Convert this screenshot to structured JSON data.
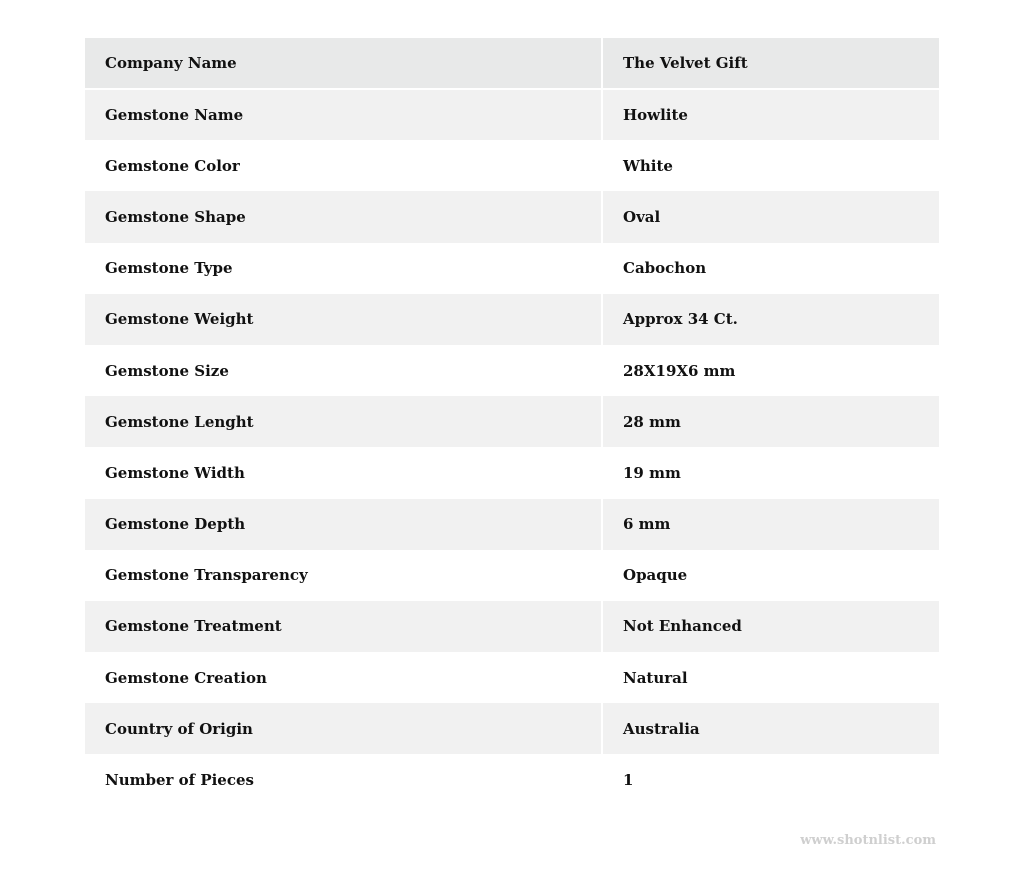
{
  "rows": [
    {
      "label": "Company Name",
      "value": "The Velvet Gift"
    },
    {
      "label": "Gemstone Name",
      "value": "Howlite"
    },
    {
      "label": "Gemstone Color",
      "value": "White"
    },
    {
      "label": "Gemstone Shape",
      "value": "Oval"
    },
    {
      "label": "Gemstone Type",
      "value": "Cabochon"
    },
    {
      "label": "Gemstone Weight",
      "value": "Approx 34 Ct."
    },
    {
      "label": "Gemstone Size",
      "value": "28X19X6 mm"
    },
    {
      "label": "Gemstone Lenght",
      "value": "28 mm"
    },
    {
      "label": "Gemstone Width",
      "value": "19 mm"
    },
    {
      "label": "Gemstone Depth",
      "value": "6 mm"
    },
    {
      "label": "Gemstone Transparency",
      "value": "Opaque"
    },
    {
      "label": "Gemstone Treatment",
      "value": "Not Enhanced"
    },
    {
      "label": "Gemstone Creation",
      "value": "Natural"
    },
    {
      "label": "Country of Origin",
      "value": "Australia"
    },
    {
      "label": "Number of Pieces",
      "value": "1"
    }
  ],
  "watermark": "www.shotnlist.com"
}
